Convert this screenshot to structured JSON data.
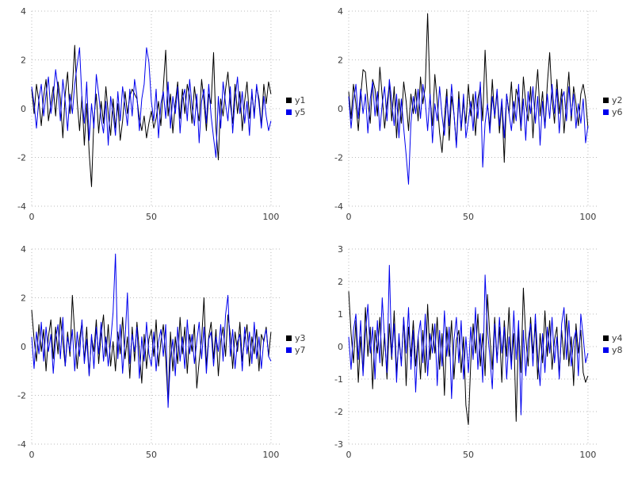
{
  "figure": {
    "background": "#ffffff",
    "grid_color": "#bbbbbb",
    "tick_label_color": "#3a3a3a",
    "tick_font_size": 11,
    "legend_font_size": 11
  },
  "chart_data": [
    {
      "type": "line",
      "title": "",
      "xlabel": "",
      "ylabel": "",
      "xlim": [
        0,
        104
      ],
      "ylim": [
        -4,
        4
      ],
      "x_ticks": [
        0,
        50,
        100
      ],
      "y_ticks": [
        -4,
        -2,
        0,
        2,
        4
      ],
      "grid": true,
      "legend_position": "right",
      "series": [
        {
          "name": "y1",
          "color": "#000000",
          "values": [
            0.8,
            -0.2,
            1.0,
            0.3,
            -0.7,
            0.5,
            1.2,
            -0.5,
            0.2,
            0.9,
            -0.3,
            1.1,
            0.4,
            -1.2,
            0.6,
            1.5,
            -0.2,
            0.8,
            2.6,
            0.3,
            -0.9,
            0.5,
            -1.5,
            0.2,
            -1.8,
            -3.2,
            -0.4,
            0.6,
            -1.0,
            0.3,
            -0.6,
            0.9,
            -0.2,
            -1.1,
            0.4,
            -0.8,
            0.2,
            -1.3,
            -0.5,
            0.7,
            -0.2,
            0.5,
            0.8,
            0.6,
            0.4,
            -0.4,
            -0.9,
            -0.3,
            -1.2,
            -0.6,
            -0.1,
            -0.8,
            -0.4,
            0.3,
            -0.7,
            0.9,
            2.4,
            -0.3,
            0.6,
            -1.0,
            0.2,
            1.1,
            -0.4,
            0.8,
            -0.2,
            1.0,
            0.5,
            -0.6,
            0.9,
            0.1,
            -0.5,
            1.2,
            0.3,
            -0.9,
            0.6,
            0.2,
            2.3,
            -0.8,
            -2.1,
            0.4,
            -0.3,
            0.8,
            1.5,
            0.2,
            -0.6,
            1.0,
            -0.2,
            0.7,
            -0.9,
            0.3,
            1.1,
            -0.4,
            0.6,
            -0.2,
            0.9,
            0.4,
            -0.7,
            1.0,
            0.2,
            1.1,
            0.6
          ]
        },
        {
          "name": "y5",
          "color": "#0000ee",
          "values": [
            0.9,
            0.2,
            -0.8,
            0.4,
            1.0,
            -0.3,
            0.6,
            1.3,
            -0.2,
            0.5,
            1.6,
            0.8,
            -0.5,
            1.2,
            0.3,
            -0.9,
            0.6,
            -0.2,
            1.0,
            1.8,
            2.5,
            0.4,
            -0.6,
            1.1,
            -1.3,
            0.2,
            -0.8,
            1.4,
            0.6,
            -0.4,
            -1.0,
            0.3,
            -1.5,
            0.5,
            -0.2,
            -1.1,
            0.7,
            -0.5,
            0.9,
            0.1,
            -0.7,
            0.8,
            -0.3,
            1.2,
            0.5,
            -0.9,
            0.4,
            1.0,
            2.5,
            1.9,
            0.3,
            -0.5,
            0.8,
            -1.2,
            0.2,
            0.7,
            -0.4,
            1.1,
            -0.8,
            0.5,
            -0.2,
            0.9,
            -1.0,
            0.4,
            0.8,
            -0.5,
            1.2,
            0.1,
            -0.7,
            0.6,
            -1.4,
            0.3,
            0.8,
            -0.6,
            1.0,
            -0.3,
            -1.2,
            -2.0,
            0.5,
            -0.8,
            1.1,
            0.2,
            -0.5,
            0.9,
            -1.0,
            0.4,
            1.3,
            -0.2,
            0.7,
            -0.6,
            0.3,
            -1.1,
            0.8,
            -0.4,
            1.0,
            0.2,
            -0.8,
            0.5,
            -0.3,
            -0.9,
            -0.5
          ]
        }
      ]
    },
    {
      "type": "line",
      "title": "",
      "xlabel": "",
      "ylabel": "",
      "xlim": [
        0,
        104
      ],
      "ylim": [
        -4,
        4
      ],
      "x_ticks": [
        0,
        50,
        100
      ],
      "y_ticks": [
        -4,
        -2,
        0,
        2,
        4
      ],
      "grid": true,
      "legend_position": "right",
      "series": [
        {
          "name": "y2",
          "color": "#000000",
          "values": [
            0.7,
            -0.4,
            1.0,
            0.2,
            -0.9,
            0.5,
            1.6,
            1.5,
            0.3,
            -0.6,
            1.2,
            0.8,
            -0.3,
            1.7,
            0.5,
            -0.8,
            0.2,
            1.0,
            -0.5,
            0.9,
            -1.2,
            0.4,
            -0.6,
            1.1,
            0.3,
            -0.9,
            0.6,
            -0.2,
            0.8,
            -0.5,
            1.3,
            0.2,
            0.9,
            3.9,
            0.5,
            -0.7,
            1.4,
            0.3,
            -1.0,
            -1.8,
            -0.4,
            0.8,
            -1.3,
            0.5,
            -0.2,
            -1.5,
            0.7,
            -0.9,
            0.3,
            -0.6,
            1.0,
            -0.3,
            0.6,
            -1.1,
            0.4,
            0.9,
            -0.5,
            2.4,
            0.2,
            -0.8,
            1.2,
            -0.4,
            0.7,
            -1.0,
            0.3,
            -2.2,
            0.6,
            -0.2,
            1.1,
            -0.6,
            0.8,
            0.4,
            -0.9,
            1.3,
            0.2,
            -0.5,
            0.9,
            -1.2,
            0.5,
            1.6,
            -0.3,
            0.7,
            -0.8,
            1.0,
            2.3,
            0.4,
            -0.6,
            1.2,
            -0.2,
            0.8,
            -1.0,
            0.3,
            1.5,
            -0.5,
            0.9,
            0.2,
            -0.7,
            0.6,
            1.0,
            0.4,
            -0.8
          ]
        },
        {
          "name": "y6",
          "color": "#0000ee",
          "values": [
            0.5,
            -0.8,
            0.3,
            1.0,
            -0.4,
            0.8,
            -0.2,
            0.6,
            -1.0,
            0.4,
            1.1,
            -0.3,
            0.7,
            -0.9,
            0.2,
            0.9,
            -0.5,
            1.2,
            0.3,
            -0.7,
            0.6,
            -1.2,
            0.4,
            -0.8,
            -1.9,
            -3.1,
            -0.6,
            0.5,
            -0.2,
            0.8,
            -0.4,
            1.0,
            0.3,
            -0.9,
            0.6,
            -1.4,
            0.2,
            -0.5,
            0.9,
            -0.3,
            -1.1,
            0.5,
            -0.7,
            1.0,
            -0.2,
            -1.6,
            0.4,
            -0.8,
            0.6,
            -1.2,
            -0.5,
            0.3,
            -0.9,
            0.7,
            -0.4,
            1.1,
            -2.4,
            -0.6,
            0.2,
            -1.0,
            0.5,
            -0.3,
            0.8,
            -0.7,
            0.4,
            -1.2,
            0.6,
            -0.2,
            -0.9,
            0.3,
            -0.5,
            1.0,
            -0.8,
            0.4,
            -1.3,
            0.7,
            -0.2,
            0.9,
            -0.6,
            0.5,
            -1.5,
            0.3,
            -0.8,
            0.6,
            -0.4,
            1.0,
            -0.2,
            0.8,
            -1.0,
            0.4,
            0.7,
            -0.5,
            0.9,
            -0.3,
            0.6,
            -0.8,
            0.2,
            -0.6,
            0.4,
            -1.4,
            -0.7
          ]
        }
      ]
    },
    {
      "type": "line",
      "title": "",
      "xlabel": "",
      "ylabel": "",
      "xlim": [
        0,
        104
      ],
      "ylim": [
        -4,
        4
      ],
      "x_ticks": [
        0,
        50,
        100
      ],
      "y_ticks": [
        -4,
        -2,
        0,
        2,
        4
      ],
      "grid": true,
      "legend_position": "right",
      "series": [
        {
          "name": "y3",
          "color": "#000000",
          "values": [
            1.5,
            0.3,
            -0.6,
            0.9,
            -0.2,
            0.7,
            -1.0,
            0.4,
            1.1,
            -0.5,
            0.8,
            -0.3,
            1.2,
            0.2,
            -0.8,
            0.6,
            -0.4,
            2.1,
            0.5,
            -0.9,
            0.3,
            1.0,
            -0.6,
            0.8,
            -1.2,
            0.4,
            -0.2,
            1.1,
            -0.7,
            0.5,
            1.3,
            -0.4,
            0.9,
            -0.8,
            0.2,
            -1.0,
            0.6,
            -0.3,
            1.2,
            -0.5,
            0.4,
            -1.3,
            0.8,
            -0.6,
            1.0,
            -0.2,
            -1.5,
            0.5,
            -0.9,
            0.3,
            0.7,
            -0.4,
            1.1,
            -0.8,
            0.2,
            0.9,
            -0.5,
            -2.3,
            0.6,
            -1.0,
            0.4,
            -0.7,
            1.2,
            -0.3,
            0.8,
            -1.1,
            0.5,
            -0.2,
            0.9,
            -1.7,
            -0.6,
            0.3,
            2.0,
            -0.8,
            0.4,
            1.0,
            -0.5,
            0.7,
            -1.2,
            0.2,
            0.8,
            -0.4,
            1.3,
            0.5,
            -0.9,
            0.6,
            -0.2,
            1.0,
            -0.6,
            0.3,
            0.9,
            -0.8,
            0.4,
            -0.3,
            0.7,
            -1.0,
            0.5,
            0.2,
            0.8,
            -0.4,
            0.6
          ]
        },
        {
          "name": "y7",
          "color": "#0000ee",
          "values": [
            0.4,
            -0.9,
            0.6,
            -0.3,
            1.0,
            -0.6,
            0.8,
            -0.2,
            0.5,
            -1.1,
            0.3,
            0.9,
            -0.5,
            1.2,
            -0.8,
            0.4,
            -0.2,
            0.7,
            -1.0,
            0.6,
            -0.4,
            1.1,
            -0.7,
            0.3,
            -1.2,
            0.5,
            -0.9,
            0.8,
            -0.3,
            1.0,
            -0.6,
            0.4,
            -0.8,
            0.2,
            1.4,
            3.8,
            -0.5,
            0.9,
            -1.1,
            0.3,
            2.2,
            -0.7,
            0.5,
            -0.2,
            0.8,
            -1.3,
            0.4,
            -0.6,
            1.0,
            -0.3,
            -0.8,
            0.6,
            -1.0,
            0.2,
            0.7,
            -0.4,
            0.9,
            -2.5,
            -0.5,
            0.3,
            -1.2,
            0.8,
            -0.6,
            0.4,
            -0.9,
            1.1,
            -0.3,
            0.5,
            -0.7,
            0.2,
            1.0,
            -0.5,
            0.8,
            -1.1,
            0.3,
            0.6,
            -0.8,
            0.4,
            -0.2,
            0.9,
            -0.6,
            1.3,
            2.1,
            -0.4,
            0.7,
            -0.9,
            0.2,
            0.5,
            -1.0,
            0.8,
            -0.3,
            0.6,
            -0.7,
            1.0,
            -0.5,
            0.4,
            -0.9,
            0.3,
            0.7,
            -0.4,
            -0.6
          ]
        }
      ]
    },
    {
      "type": "line",
      "title": "",
      "xlabel": "",
      "ylabel": "",
      "xlim": [
        0,
        104
      ],
      "ylim": [
        -3,
        3
      ],
      "x_ticks": [
        0,
        50,
        100
      ],
      "y_ticks": [
        -3,
        -2,
        -1,
        0,
        1,
        2,
        3
      ],
      "grid": true,
      "legend_position": "right",
      "series": [
        {
          "name": "y4",
          "color": "#000000",
          "values": [
            1.7,
            0.4,
            -0.5,
            0.8,
            -1.1,
            0.3,
            -0.8,
            1.2,
            -0.3,
            0.6,
            -1.3,
            0.5,
            -0.2,
            0.9,
            -0.6,
            0.4,
            -1.0,
            0.7,
            -0.4,
            1.1,
            -0.8,
            0.2,
            -0.5,
            0.9,
            -1.2,
            0.6,
            -0.3,
            0.8,
            -0.6,
            0.3,
            -1.0,
            0.5,
            -0.8,
            1.3,
            -0.4,
            0.7,
            -0.2,
            0.9,
            -0.7,
            0.4,
            -1.5,
            0.6,
            -0.3,
            0.8,
            -1.0,
            0.2,
            0.5,
            -0.8,
            0.3,
            -1.8,
            -2.4,
            -0.5,
            0.7,
            -0.2,
            1.0,
            -0.6,
            0.4,
            -0.9,
            1.6,
            0.3,
            -0.7,
            0.9,
            -0.4,
            0.6,
            -1.1,
            0.8,
            -0.3,
            1.2,
            -0.5,
            0.4,
            -2.3,
            0.6,
            -0.8,
            1.8,
            0.3,
            -0.6,
            0.9,
            -0.2,
            0.7,
            -1.0,
            0.4,
            -0.5,
            1.1,
            -0.3,
            0.8,
            -0.7,
            0.2,
            0.6,
            -0.9,
            0.5,
            -0.4,
            1.0,
            -0.6,
            0.3,
            -1.2,
            0.7,
            -0.2,
            0.5,
            -0.8,
            -1.1,
            -0.9
          ]
        },
        {
          "name": "y8",
          "color": "#0000ee",
          "values": [
            0.3,
            -0.7,
            0.5,
            1.0,
            -0.4,
            0.8,
            -0.9,
            0.4,
            1.3,
            -0.2,
            0.6,
            -1.0,
            0.8,
            -0.5,
            1.5,
            0.2,
            -0.8,
            2.5,
            -0.3,
            0.7,
            -1.1,
            0.4,
            -0.6,
            0.9,
            -0.2,
            1.2,
            -0.7,
            0.5,
            -1.4,
            0.3,
            0.8,
            -0.5,
            1.0,
            -0.9,
            0.4,
            -0.2,
            0.7,
            -1.2,
            0.5,
            -0.6,
            1.1,
            -0.3,
            0.6,
            -1.6,
            0.2,
            0.9,
            -0.5,
            0.8,
            -1.0,
            0.3,
            -0.8,
            0.6,
            -0.4,
            1.2,
            -0.7,
            0.4,
            -1.1,
            2.2,
            0.5,
            -0.3,
            -1.3,
            0.7,
            -0.5,
            0.9,
            -0.2,
            0.6,
            -1.0,
            0.3,
            -0.7,
            1.1,
            -0.4,
            0.8,
            -2.1,
            0.5,
            -0.9,
            0.2,
            0.7,
            -0.6,
            1.0,
            -0.3,
            -1.2,
            0.4,
            -0.8,
            0.6,
            -0.2,
            0.9,
            -0.5,
            0.3,
            -1.0,
            0.7,
            1.2,
            -0.4,
            0.8,
            -0.6,
            0.2,
            0.5,
            -0.9,
            1.0,
            0.3,
            -0.5,
            -0.2
          ]
        }
      ]
    }
  ]
}
